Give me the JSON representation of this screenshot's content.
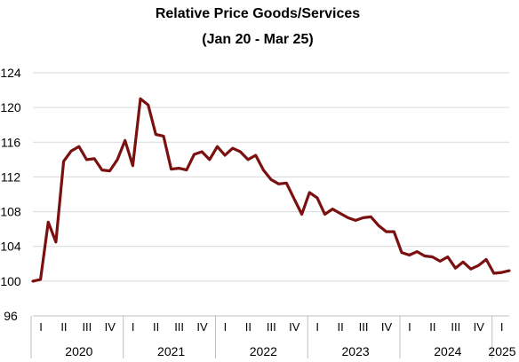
{
  "chart_data": {
    "type": "line",
    "title": "Relative Price Goods/Services",
    "subtitle": "(Jan 20 - Mar 25)",
    "xlabel": "",
    "ylabel": "",
    "ylim": [
      96,
      124
    ],
    "yticks": [
      "96",
      "100",
      "104",
      "108",
      "112",
      "116",
      "120",
      "124"
    ],
    "grid": true,
    "legend": "none",
    "line_color": "#7b1010",
    "quarter_ticks": [
      "I",
      "II",
      "III",
      "IV",
      "I",
      "II",
      "III",
      "IV",
      "I",
      "II",
      "III",
      "IV",
      "I",
      "II",
      "III",
      "IV",
      "I",
      "II",
      "III",
      "IV",
      "I"
    ],
    "year_labels": [
      "2020",
      "2021",
      "2022",
      "2023",
      "2024",
      "2025"
    ],
    "x": [
      "Jan 20",
      "Feb 20",
      "Mar 20",
      "Apr 20",
      "May 20",
      "Jun 20",
      "Jul 20",
      "Aug 20",
      "Sep 20",
      "Oct 20",
      "Nov 20",
      "Dec 20",
      "Jan 21",
      "Feb 21",
      "Mar 21",
      "Apr 21",
      "May 21",
      "Jun 21",
      "Jul 21",
      "Aug 21",
      "Sep 21",
      "Oct 21",
      "Nov 21",
      "Dec 21",
      "Jan 22",
      "Feb 22",
      "Mar 22",
      "Apr 22",
      "May 22",
      "Jun 22",
      "Jul 22",
      "Aug 22",
      "Sep 22",
      "Oct 22",
      "Nov 22",
      "Dec 22",
      "Jan 23",
      "Feb 23",
      "Mar 23",
      "Apr 23",
      "May 23",
      "Jun 23",
      "Jul 23",
      "Aug 23",
      "Sep 23",
      "Oct 23",
      "Nov 23",
      "Dec 23",
      "Jan 24",
      "Feb 24",
      "Mar 24",
      "Apr 24",
      "May 24",
      "Jun 24",
      "Jul 24",
      "Aug 24",
      "Sep 24",
      "Oct 24",
      "Nov 24",
      "Dec 24",
      "Jan 25",
      "Feb 25",
      "Mar 25"
    ],
    "series": [
      {
        "values": [
          100.0,
          100.2,
          106.8,
          104.5,
          113.8,
          115.0,
          115.5,
          114.0,
          114.1,
          112.8,
          112.7,
          114.0,
          116.2,
          113.3,
          121.0,
          120.3,
          116.9,
          116.7,
          112.9,
          113.0,
          112.8,
          114.6,
          114.9,
          114.0,
          115.5,
          114.5,
          115.3,
          114.9,
          114.0,
          114.5,
          112.8,
          111.7,
          111.2,
          111.3,
          109.5,
          107.7,
          110.2,
          109.6,
          107.7,
          108.3,
          107.8,
          107.3,
          107.0,
          107.3,
          107.4,
          106.4,
          105.7,
          105.7,
          103.3,
          103.0,
          103.4,
          102.9,
          102.8,
          102.3,
          102.8,
          101.5,
          102.2,
          101.4,
          101.8,
          102.5,
          100.9,
          101.0,
          101.2
        ]
      }
    ]
  }
}
